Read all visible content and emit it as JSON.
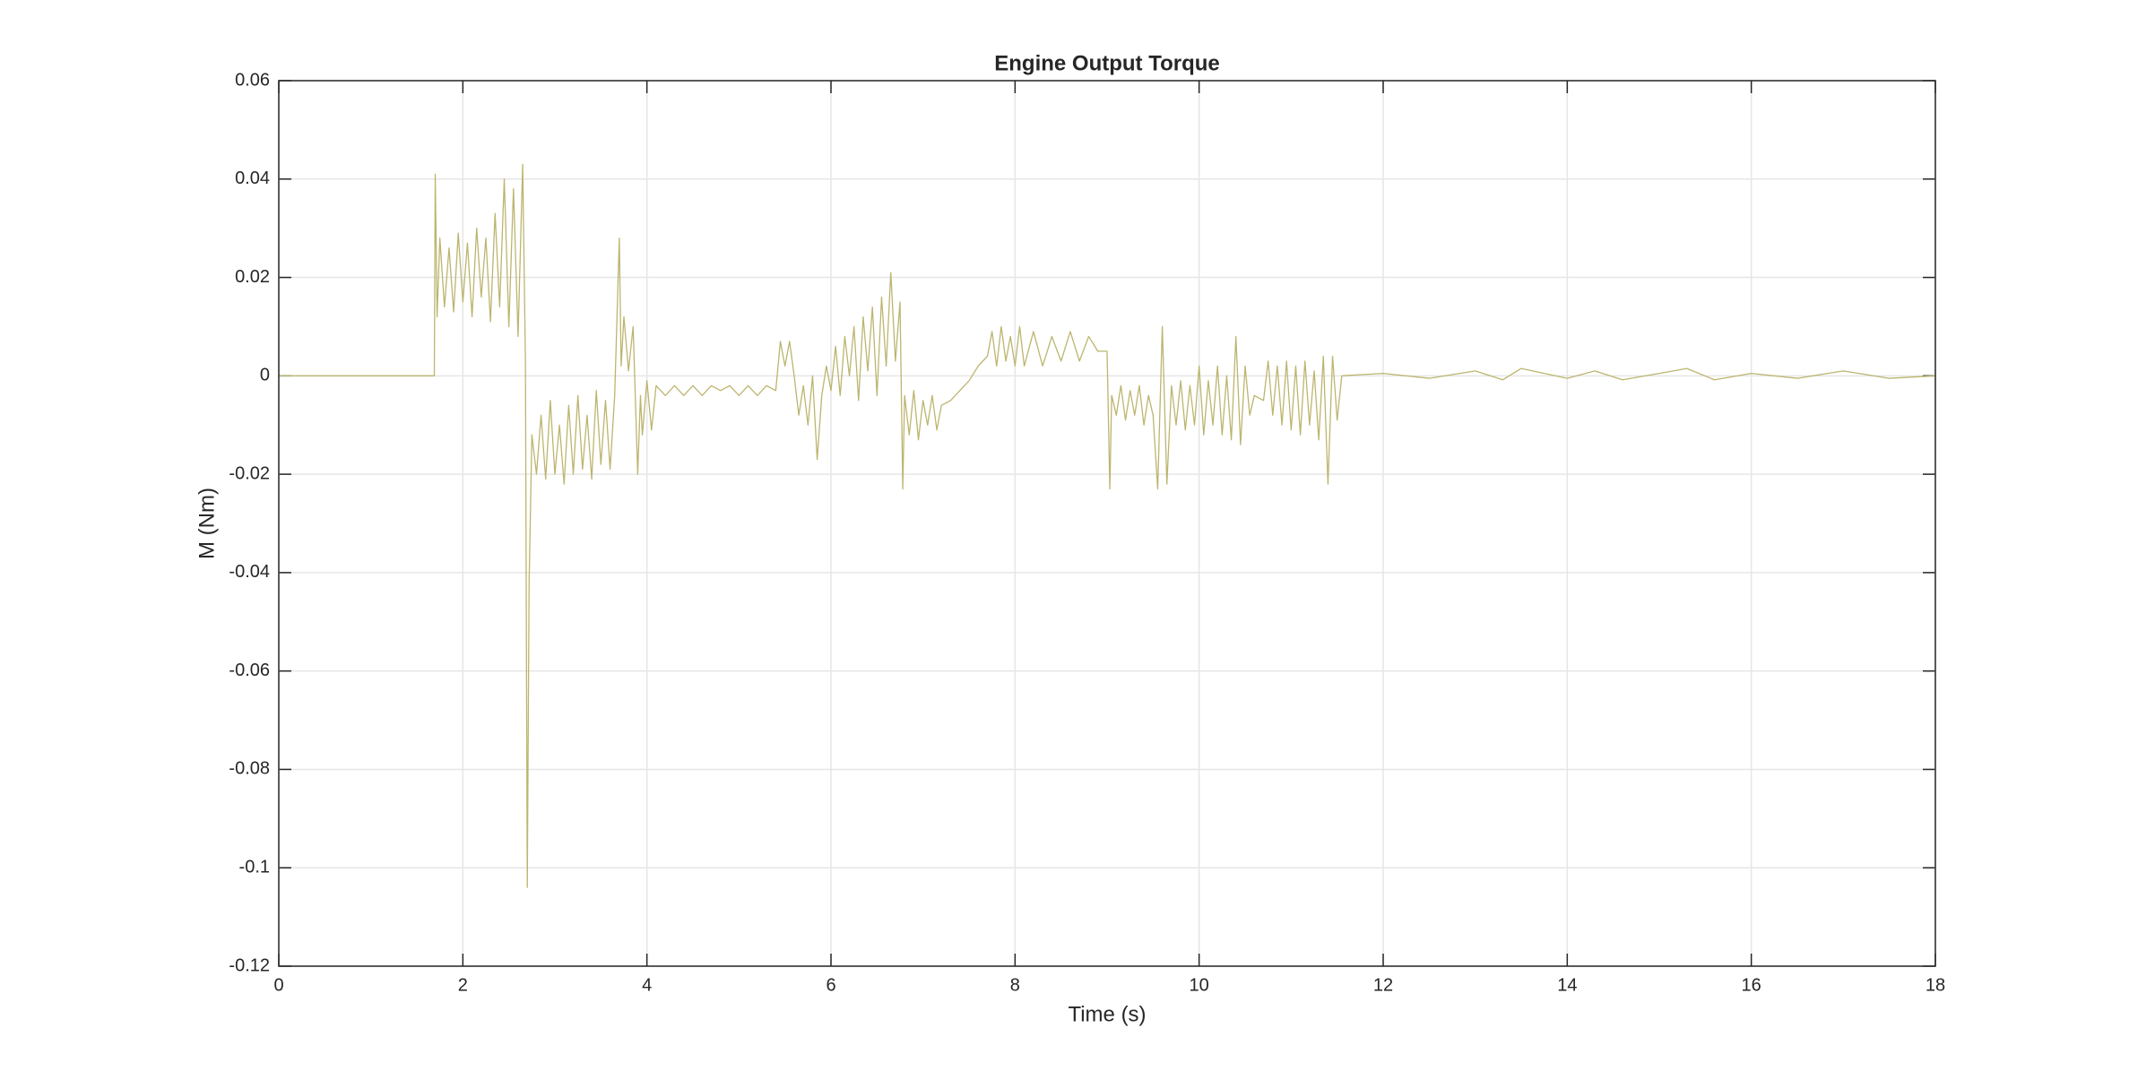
{
  "chart_data": {
    "type": "line",
    "title": "Engine Output Torque",
    "x_label": "Time (s)",
    "y_label": "M (Nm)",
    "xlim": [
      0,
      18
    ],
    "xticks": [
      0,
      2,
      4,
      6,
      8,
      10,
      12,
      14,
      16,
      18
    ],
    "ylim": [
      -0.12,
      0.06
    ],
    "yticks": [
      -0.12,
      -0.1,
      -0.08,
      -0.06,
      -0.04,
      -0.02,
      0,
      0.02,
      0.04,
      0.06
    ],
    "grid": true,
    "series": [
      {
        "color": "#bcb56f",
        "x": [
          0,
          1.69,
          1.7,
          1.72,
          1.75,
          1.8,
          1.85,
          1.9,
          1.95,
          2.0,
          2.05,
          2.1,
          2.15,
          2.2,
          2.25,
          2.3,
          2.35,
          2.4,
          2.45,
          2.5,
          2.55,
          2.6,
          2.65,
          2.68,
          2.7,
          2.72,
          2.75,
          2.8,
          2.85,
          2.9,
          2.95,
          3.0,
          3.05,
          3.1,
          3.15,
          3.2,
          3.25,
          3.3,
          3.35,
          3.4,
          3.45,
          3.5,
          3.55,
          3.6,
          3.65,
          3.7,
          3.72,
          3.75,
          3.8,
          3.85,
          3.9,
          3.93,
          3.95,
          4.0,
          4.05,
          4.1,
          4.2,
          4.3,
          4.4,
          4.5,
          4.6,
          4.7,
          4.8,
          4.9,
          5.0,
          5.1,
          5.2,
          5.3,
          5.4,
          5.45,
          5.5,
          5.55,
          5.6,
          5.65,
          5.7,
          5.75,
          5.8,
          5.85,
          5.9,
          5.95,
          6.0,
          6.05,
          6.1,
          6.15,
          6.2,
          6.25,
          6.3,
          6.35,
          6.4,
          6.45,
          6.5,
          6.55,
          6.6,
          6.65,
          6.7,
          6.75,
          6.78,
          6.8,
          6.85,
          6.9,
          6.95,
          7.0,
          7.05,
          7.1,
          7.15,
          7.2,
          7.3,
          7.4,
          7.5,
          7.6,
          7.7,
          7.75,
          7.8,
          7.85,
          7.9,
          7.95,
          8.0,
          8.05,
          8.1,
          8.2,
          8.3,
          8.4,
          8.5,
          8.6,
          8.7,
          8.8,
          8.9,
          9.0,
          9.03,
          9.05,
          9.1,
          9.15,
          9.2,
          9.25,
          9.3,
          9.35,
          9.4,
          9.45,
          9.5,
          9.55,
          9.6,
          9.65,
          9.7,
          9.75,
          9.8,
          9.85,
          9.9,
          9.95,
          10.0,
          10.05,
          10.1,
          10.15,
          10.2,
          10.25,
          10.3,
          10.35,
          10.4,
          10.45,
          10.5,
          10.55,
          10.6,
          10.7,
          10.75,
          10.8,
          10.85,
          10.9,
          10.95,
          11.0,
          11.05,
          11.1,
          11.15,
          11.2,
          11.25,
          11.3,
          11.35,
          11.4,
          11.45,
          11.5,
          11.55,
          12.0,
          12.5,
          13.0,
          13.3,
          13.5,
          14.0,
          14.3,
          14.6,
          15.0,
          15.3,
          15.6,
          16.0,
          16.5,
          17.0,
          17.5,
          18.0
        ],
        "values": [
          0,
          0,
          0.041,
          0.012,
          0.028,
          0.014,
          0.026,
          0.013,
          0.029,
          0.015,
          0.027,
          0.012,
          0.03,
          0.016,
          0.028,
          0.011,
          0.033,
          0.014,
          0.04,
          0.01,
          0.038,
          0.008,
          0.043,
          0.003,
          -0.104,
          -0.042,
          -0.012,
          -0.02,
          -0.008,
          -0.021,
          -0.005,
          -0.02,
          -0.01,
          -0.022,
          -0.006,
          -0.02,
          -0.004,
          -0.019,
          -0.008,
          -0.021,
          -0.003,
          -0.018,
          -0.005,
          -0.019,
          -0.004,
          0.028,
          0.002,
          0.012,
          0.001,
          0.01,
          -0.02,
          -0.004,
          -0.012,
          -0.001,
          -0.011,
          -0.002,
          -0.004,
          -0.002,
          -0.004,
          -0.002,
          -0.004,
          -0.002,
          -0.003,
          -0.002,
          -0.004,
          -0.002,
          -0.004,
          -0.002,
          -0.003,
          0.007,
          0.002,
          0.007,
          0,
          -0.008,
          -0.002,
          -0.01,
          0,
          -0.017,
          -0.004,
          0.002,
          -0.003,
          0.006,
          -0.004,
          0.008,
          0,
          0.01,
          -0.005,
          0.012,
          0.001,
          0.014,
          -0.004,
          0.016,
          0.002,
          0.021,
          0.003,
          0.015,
          -0.023,
          -0.004,
          -0.012,
          -0.003,
          -0.013,
          -0.005,
          -0.01,
          -0.004,
          -0.011,
          -0.006,
          -0.005,
          -0.003,
          -0.001,
          0.002,
          0.004,
          0.009,
          0.002,
          0.01,
          0.003,
          0.008,
          0.002,
          0.01,
          0.002,
          0.009,
          0.002,
          0.008,
          0.003,
          0.009,
          0.003,
          0.008,
          0.005,
          0.005,
          -0.023,
          -0.004,
          -0.008,
          -0.002,
          -0.009,
          -0.003,
          -0.008,
          -0.002,
          -0.01,
          -0.004,
          -0.008,
          -0.023,
          0.01,
          -0.022,
          -0.002,
          -0.01,
          -0.001,
          -0.011,
          -0.002,
          -0.01,
          0.002,
          -0.012,
          -0.001,
          -0.01,
          0.002,
          -0.012,
          0,
          -0.013,
          0.008,
          -0.014,
          0.002,
          -0.008,
          -0.004,
          -0.005,
          0.003,
          -0.008,
          0.002,
          -0.01,
          0.003,
          -0.011,
          0.002,
          -0.012,
          0.003,
          -0.01,
          0.001,
          -0.013,
          0.004,
          -0.022,
          0.004,
          -0.009,
          0,
          0.0005,
          -0.0005,
          0.001,
          -0.0008,
          0.0015,
          -0.0005,
          0.001,
          -0.0008,
          0.0005,
          0.0015,
          -0.0008,
          0.0005,
          -0.0005,
          0.001,
          -0.0005,
          0
        ]
      }
    ]
  }
}
